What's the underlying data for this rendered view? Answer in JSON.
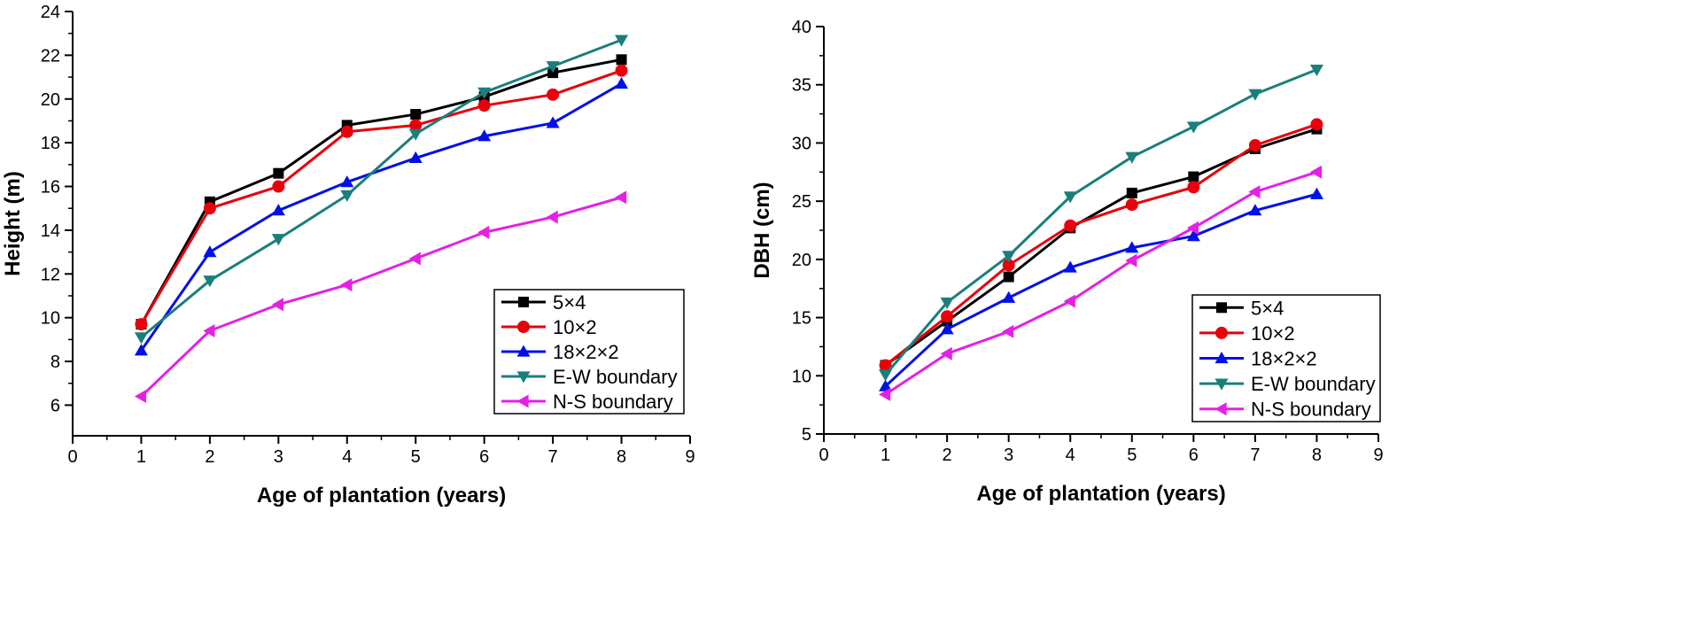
{
  "chart_data": [
    {
      "type": "line",
      "xlabel": "Age of plantation (years)",
      "ylabel": "Height (m)",
      "xlim": [
        0,
        9
      ],
      "ylim": [
        4.6,
        24
      ],
      "xticks": [
        0,
        1,
        2,
        3,
        4,
        5,
        6,
        7,
        8,
        9
      ],
      "yticks": [
        6,
        8,
        10,
        12,
        14,
        16,
        18,
        20,
        22,
        24
      ],
      "legend_position": "bottom-right",
      "x": [
        1,
        2,
        3,
        4,
        5,
        6,
        7,
        8
      ],
      "series": [
        {
          "name": "5×4",
          "marker": "square",
          "color": "#000000",
          "values": [
            9.7,
            15.3,
            16.6,
            18.8,
            19.3,
            20.1,
            21.2,
            21.8
          ]
        },
        {
          "name": "10×2",
          "marker": "circle",
          "color": "#e8000b",
          "values": [
            9.7,
            15.0,
            16.0,
            18.5,
            18.8,
            19.7,
            20.2,
            21.3
          ]
        },
        {
          "name": "18×2×2",
          "marker": "triangle-up",
          "color": "#0010e8",
          "values": [
            8.5,
            13.0,
            14.9,
            16.2,
            17.3,
            18.3,
            18.9,
            20.7
          ]
        },
        {
          "name": "E-W boundary",
          "marker": "triangle-down",
          "color": "#1a7f7a",
          "values": [
            9.1,
            11.7,
            13.6,
            15.6,
            18.4,
            20.3,
            21.5,
            22.7
          ]
        },
        {
          "name": "N-S boundary",
          "marker": "triangle-left",
          "color": "#e520e5",
          "values": [
            6.4,
            9.4,
            10.6,
            11.5,
            12.7,
            13.9,
            14.6,
            15.5
          ]
        }
      ]
    },
    {
      "type": "line",
      "xlabel": "Age of plantation (years)",
      "ylabel": "DBH (cm)",
      "xlim": [
        0,
        9
      ],
      "ylim": [
        5,
        40
      ],
      "xticks": [
        0,
        1,
        2,
        3,
        4,
        5,
        6,
        7,
        8,
        9
      ],
      "yticks": [
        5,
        10,
        15,
        20,
        25,
        30,
        35,
        40
      ],
      "legend_position": "bottom-right",
      "x": [
        1,
        2,
        3,
        4,
        5,
        6,
        7,
        8
      ],
      "series": [
        {
          "name": "5×4",
          "marker": "square",
          "color": "#000000",
          "values": [
            10.9,
            14.7,
            18.5,
            22.7,
            25.7,
            27.1,
            29.5,
            31.2
          ]
        },
        {
          "name": "10×2",
          "marker": "circle",
          "color": "#e8000b",
          "values": [
            10.9,
            15.1,
            19.5,
            22.9,
            24.7,
            26.2,
            29.8,
            31.6
          ]
        },
        {
          "name": "18×2×2",
          "marker": "triangle-up",
          "color": "#0010e8",
          "values": [
            9.1,
            14.0,
            16.7,
            19.3,
            21.0,
            22.0,
            24.2,
            25.6
          ]
        },
        {
          "name": "E-W boundary",
          "marker": "triangle-down",
          "color": "#1a7f7a",
          "values": [
            10.1,
            16.3,
            20.3,
            25.4,
            28.8,
            31.4,
            34.2,
            36.3
          ]
        },
        {
          "name": "N-S boundary",
          "marker": "triangle-left",
          "color": "#e520e5",
          "values": [
            8.4,
            11.9,
            13.8,
            16.4,
            19.9,
            22.7,
            25.8,
            27.5
          ]
        }
      ]
    }
  ]
}
